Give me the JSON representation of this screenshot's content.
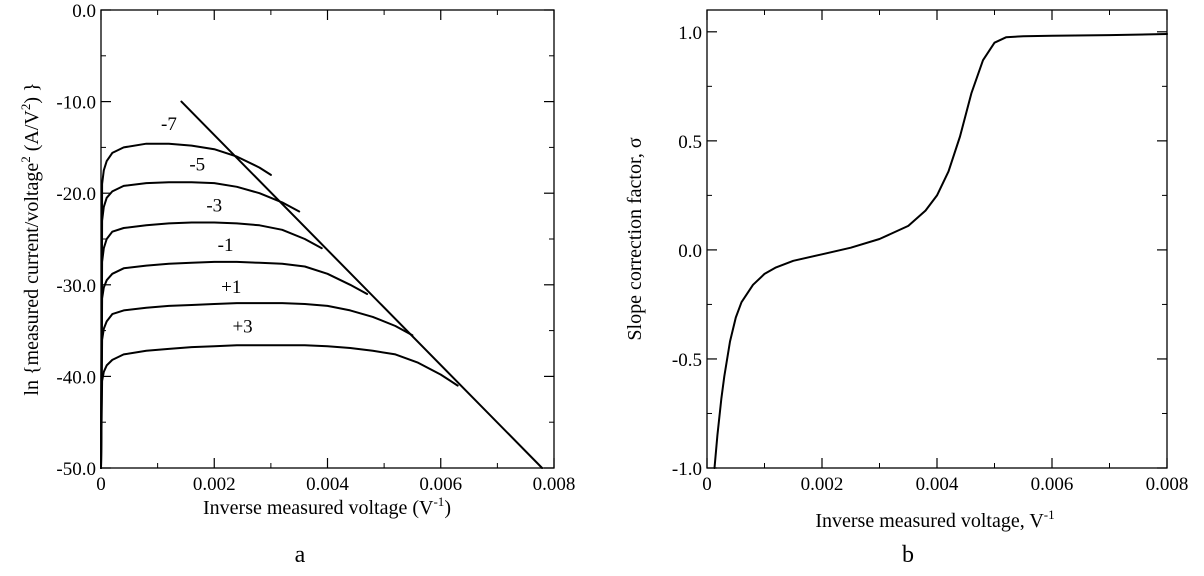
{
  "chart_data": [
    {
      "type": "line",
      "panel_label": "a",
      "xlabel": "Inverse measured voltage (V",
      "xlabel_sup": "-1",
      "xlabel_end": ")",
      "ylabel": "ln {measured current/voltage",
      "ylabel_sup1": "2",
      "ylabel_mid": " (A/V",
      "ylabel_sup2": "2",
      "ylabel_end": ") }",
      "xlim": [
        0,
        0.008
      ],
      "ylim": [
        -50,
        0
      ],
      "x_ticks": [
        0,
        0.002,
        0.004,
        0.006,
        0.008
      ],
      "x_tick_labels": [
        "0",
        "0.002",
        "0.004",
        "0.006",
        "0.008"
      ],
      "y_ticks": [
        0,
        -10,
        -20,
        -30,
        -40,
        -50
      ],
      "y_tick_labels": [
        "0.0",
        "-10.0",
        "-20.0",
        "-30.0",
        "-40.0",
        "-50.0"
      ],
      "series": [
        {
          "name": "-7",
          "label_at": [
            0.0012,
            -13.1
          ],
          "points": [
            [
              0.0,
              -50.0
            ],
            [
              2e-05,
              -19.0
            ],
            [
              5e-05,
              -17.5
            ],
            [
              0.0001,
              -16.5
            ],
            [
              0.0002,
              -15.6
            ],
            [
              0.0004,
              -15.0
            ],
            [
              0.0008,
              -14.6
            ],
            [
              0.0012,
              -14.6
            ],
            [
              0.0016,
              -14.8
            ],
            [
              0.002,
              -15.2
            ],
            [
              0.0024,
              -16.0
            ],
            [
              0.0028,
              -17.2
            ],
            [
              0.003,
              -18.0
            ]
          ]
        },
        {
          "name": "-5",
          "label_at": [
            0.0017,
            -17.5
          ],
          "points": [
            [
              0.0,
              -50.0
            ],
            [
              2e-05,
              -23.0
            ],
            [
              5e-05,
              -21.5
            ],
            [
              0.0001,
              -20.5
            ],
            [
              0.0002,
              -19.8
            ],
            [
              0.0004,
              -19.2
            ],
            [
              0.0008,
              -18.9
            ],
            [
              0.0012,
              -18.8
            ],
            [
              0.0016,
              -18.8
            ],
            [
              0.002,
              -18.9
            ],
            [
              0.0024,
              -19.3
            ],
            [
              0.0028,
              -20.0
            ],
            [
              0.0032,
              -21.0
            ],
            [
              0.0035,
              -22.0
            ]
          ]
        },
        {
          "name": "-3",
          "label_at": [
            0.002,
            -22.0
          ],
          "points": [
            [
              0.0,
              -50.0
            ],
            [
              2e-05,
              -27.5
            ],
            [
              5e-05,
              -26.0
            ],
            [
              0.0001,
              -25.0
            ],
            [
              0.0002,
              -24.2
            ],
            [
              0.0004,
              -23.8
            ],
            [
              0.0008,
              -23.5
            ],
            [
              0.0012,
              -23.3
            ],
            [
              0.0016,
              -23.2
            ],
            [
              0.002,
              -23.2
            ],
            [
              0.0024,
              -23.3
            ],
            [
              0.0028,
              -23.5
            ],
            [
              0.0032,
              -24.0
            ],
            [
              0.0036,
              -25.0
            ],
            [
              0.0039,
              -26.0
            ]
          ]
        },
        {
          "name": "-1",
          "label_at": [
            0.0022,
            -26.3
          ],
          "points": [
            [
              0.0,
              -50.0
            ],
            [
              2e-05,
              -31.5
            ],
            [
              5e-05,
              -30.3
            ],
            [
              0.0001,
              -29.5
            ],
            [
              0.0002,
              -28.8
            ],
            [
              0.0004,
              -28.2
            ],
            [
              0.0008,
              -27.9
            ],
            [
              0.0012,
              -27.7
            ],
            [
              0.0016,
              -27.6
            ],
            [
              0.002,
              -27.5
            ],
            [
              0.0024,
              -27.5
            ],
            [
              0.0028,
              -27.6
            ],
            [
              0.0032,
              -27.7
            ],
            [
              0.0036,
              -28.0
            ],
            [
              0.004,
              -28.8
            ],
            [
              0.0044,
              -30.0
            ],
            [
              0.0047,
              -31.0
            ]
          ]
        },
        {
          "name": "+1",
          "label_at": [
            0.0023,
            -30.9
          ],
          "points": [
            [
              0.0,
              -50.0
            ],
            [
              2e-05,
              -36.0
            ],
            [
              5e-05,
              -34.8
            ],
            [
              0.0001,
              -34.0
            ],
            [
              0.0002,
              -33.2
            ],
            [
              0.0004,
              -32.8
            ],
            [
              0.0008,
              -32.5
            ],
            [
              0.0012,
              -32.3
            ],
            [
              0.0016,
              -32.2
            ],
            [
              0.002,
              -32.1
            ],
            [
              0.0024,
              -32.0
            ],
            [
              0.0028,
              -32.0
            ],
            [
              0.0032,
              -32.0
            ],
            [
              0.0036,
              -32.1
            ],
            [
              0.004,
              -32.3
            ],
            [
              0.0044,
              -32.8
            ],
            [
              0.0048,
              -33.5
            ],
            [
              0.0052,
              -34.5
            ],
            [
              0.0055,
              -35.5
            ]
          ]
        },
        {
          "name": "+3",
          "label_at": [
            0.0025,
            -35.2
          ],
          "points": [
            [
              0.0,
              -50.0
            ],
            [
              2e-05,
              -40.5
            ],
            [
              5e-05,
              -39.5
            ],
            [
              0.0001,
              -38.8
            ],
            [
              0.0002,
              -38.2
            ],
            [
              0.0004,
              -37.6
            ],
            [
              0.0008,
              -37.2
            ],
            [
              0.0012,
              -37.0
            ],
            [
              0.0016,
              -36.8
            ],
            [
              0.002,
              -36.7
            ],
            [
              0.0024,
              -36.6
            ],
            [
              0.0028,
              -36.6
            ],
            [
              0.0032,
              -36.6
            ],
            [
              0.0036,
              -36.6
            ],
            [
              0.004,
              -36.7
            ],
            [
              0.0044,
              -36.9
            ],
            [
              0.0048,
              -37.2
            ],
            [
              0.0052,
              -37.6
            ],
            [
              0.0056,
              -38.5
            ],
            [
              0.006,
              -39.8
            ],
            [
              0.0063,
              -41.0
            ]
          ]
        },
        {
          "name": "",
          "points": [
            [
              0.00142,
              -10.0
            ],
            [
              0.00779,
              -50.0
            ]
          ]
        }
      ]
    },
    {
      "type": "line",
      "panel_label": "b",
      "xlabel": "Inverse measured voltage, V",
      "xlabel_sup": "-1",
      "ylabel": "Slope correction factor, σ",
      "xlim": [
        0,
        0.008
      ],
      "ylim": [
        -1.0,
        1.1
      ],
      "x_ticks": [
        0,
        0.002,
        0.004,
        0.006,
        0.008
      ],
      "x_tick_labels": [
        "0",
        "0.002",
        "0.004",
        "0.006",
        "0.008"
      ],
      "y_ticks": [
        1.0,
        0.5,
        0.0,
        -0.5,
        -1.0
      ],
      "y_tick_labels": [
        "1.0",
        "0.5",
        "0.0",
        "-0.5",
        "-1.0"
      ],
      "series": [
        {
          "name": "",
          "points": [
            [
              0.00013,
              -1.0
            ],
            [
              0.00018,
              -0.85
            ],
            [
              0.00025,
              -0.68
            ],
            [
              0.0003,
              -0.58
            ],
            [
              0.0004,
              -0.42
            ],
            [
              0.0005,
              -0.31
            ],
            [
              0.0006,
              -0.24
            ],
            [
              0.0008,
              -0.16
            ],
            [
              0.001,
              -0.11
            ],
            [
              0.0012,
              -0.08
            ],
            [
              0.0015,
              -0.05
            ],
            [
              0.002,
              -0.02
            ],
            [
              0.0025,
              0.01
            ],
            [
              0.003,
              0.05
            ],
            [
              0.0035,
              0.11
            ],
            [
              0.0038,
              0.18
            ],
            [
              0.004,
              0.25
            ],
            [
              0.0042,
              0.36
            ],
            [
              0.0044,
              0.52
            ],
            [
              0.0046,
              0.72
            ],
            [
              0.0048,
              0.87
            ],
            [
              0.005,
              0.95
            ],
            [
              0.0052,
              0.975
            ],
            [
              0.0055,
              0.98
            ],
            [
              0.006,
              0.982
            ],
            [
              0.007,
              0.985
            ],
            [
              0.008,
              0.99
            ]
          ]
        }
      ]
    }
  ]
}
